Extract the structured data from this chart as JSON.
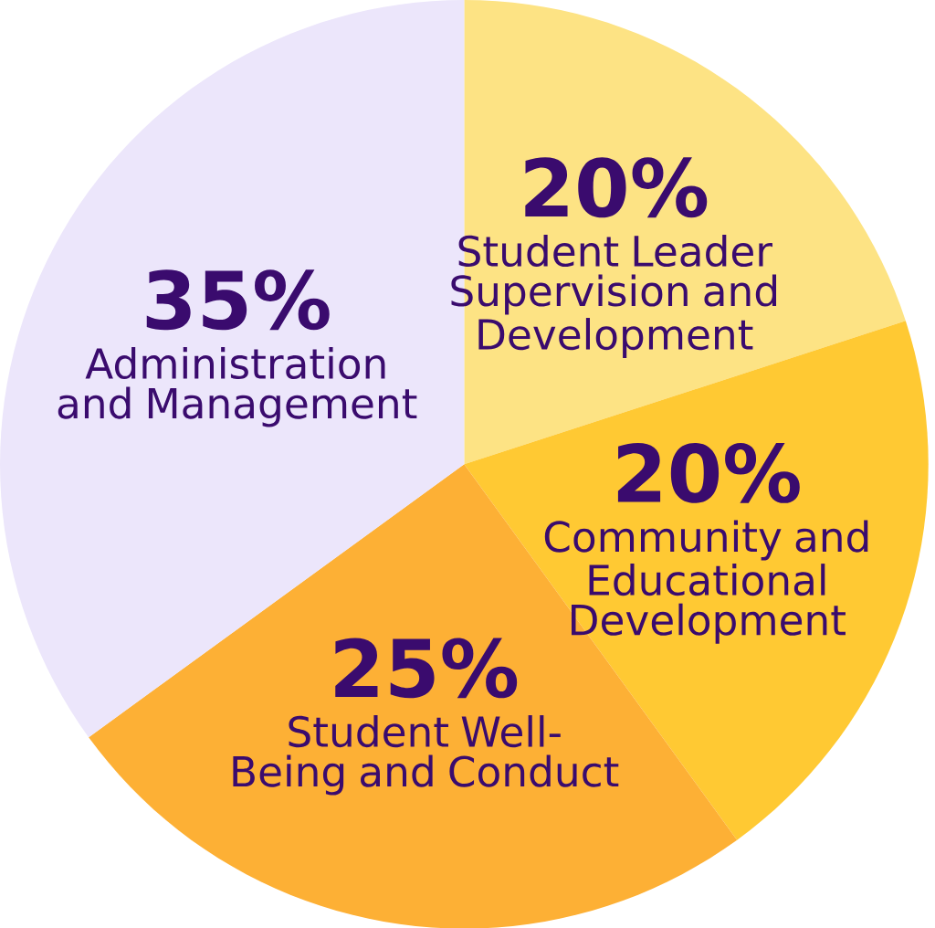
{
  "chart_data": {
    "type": "pie",
    "categories": [
      "Student Leader Supervision and Development",
      "Community and Educational Development",
      "Student Well-Being and Conduct",
      "Administration and Management"
    ],
    "values": [
      20,
      20,
      25,
      35
    ],
    "value_labels": [
      "20%",
      "20%",
      "25%",
      "35%"
    ],
    "colors": [
      "#fde384",
      "#ffc933",
      "#fdb035",
      "#ece6fb"
    ]
  }
}
